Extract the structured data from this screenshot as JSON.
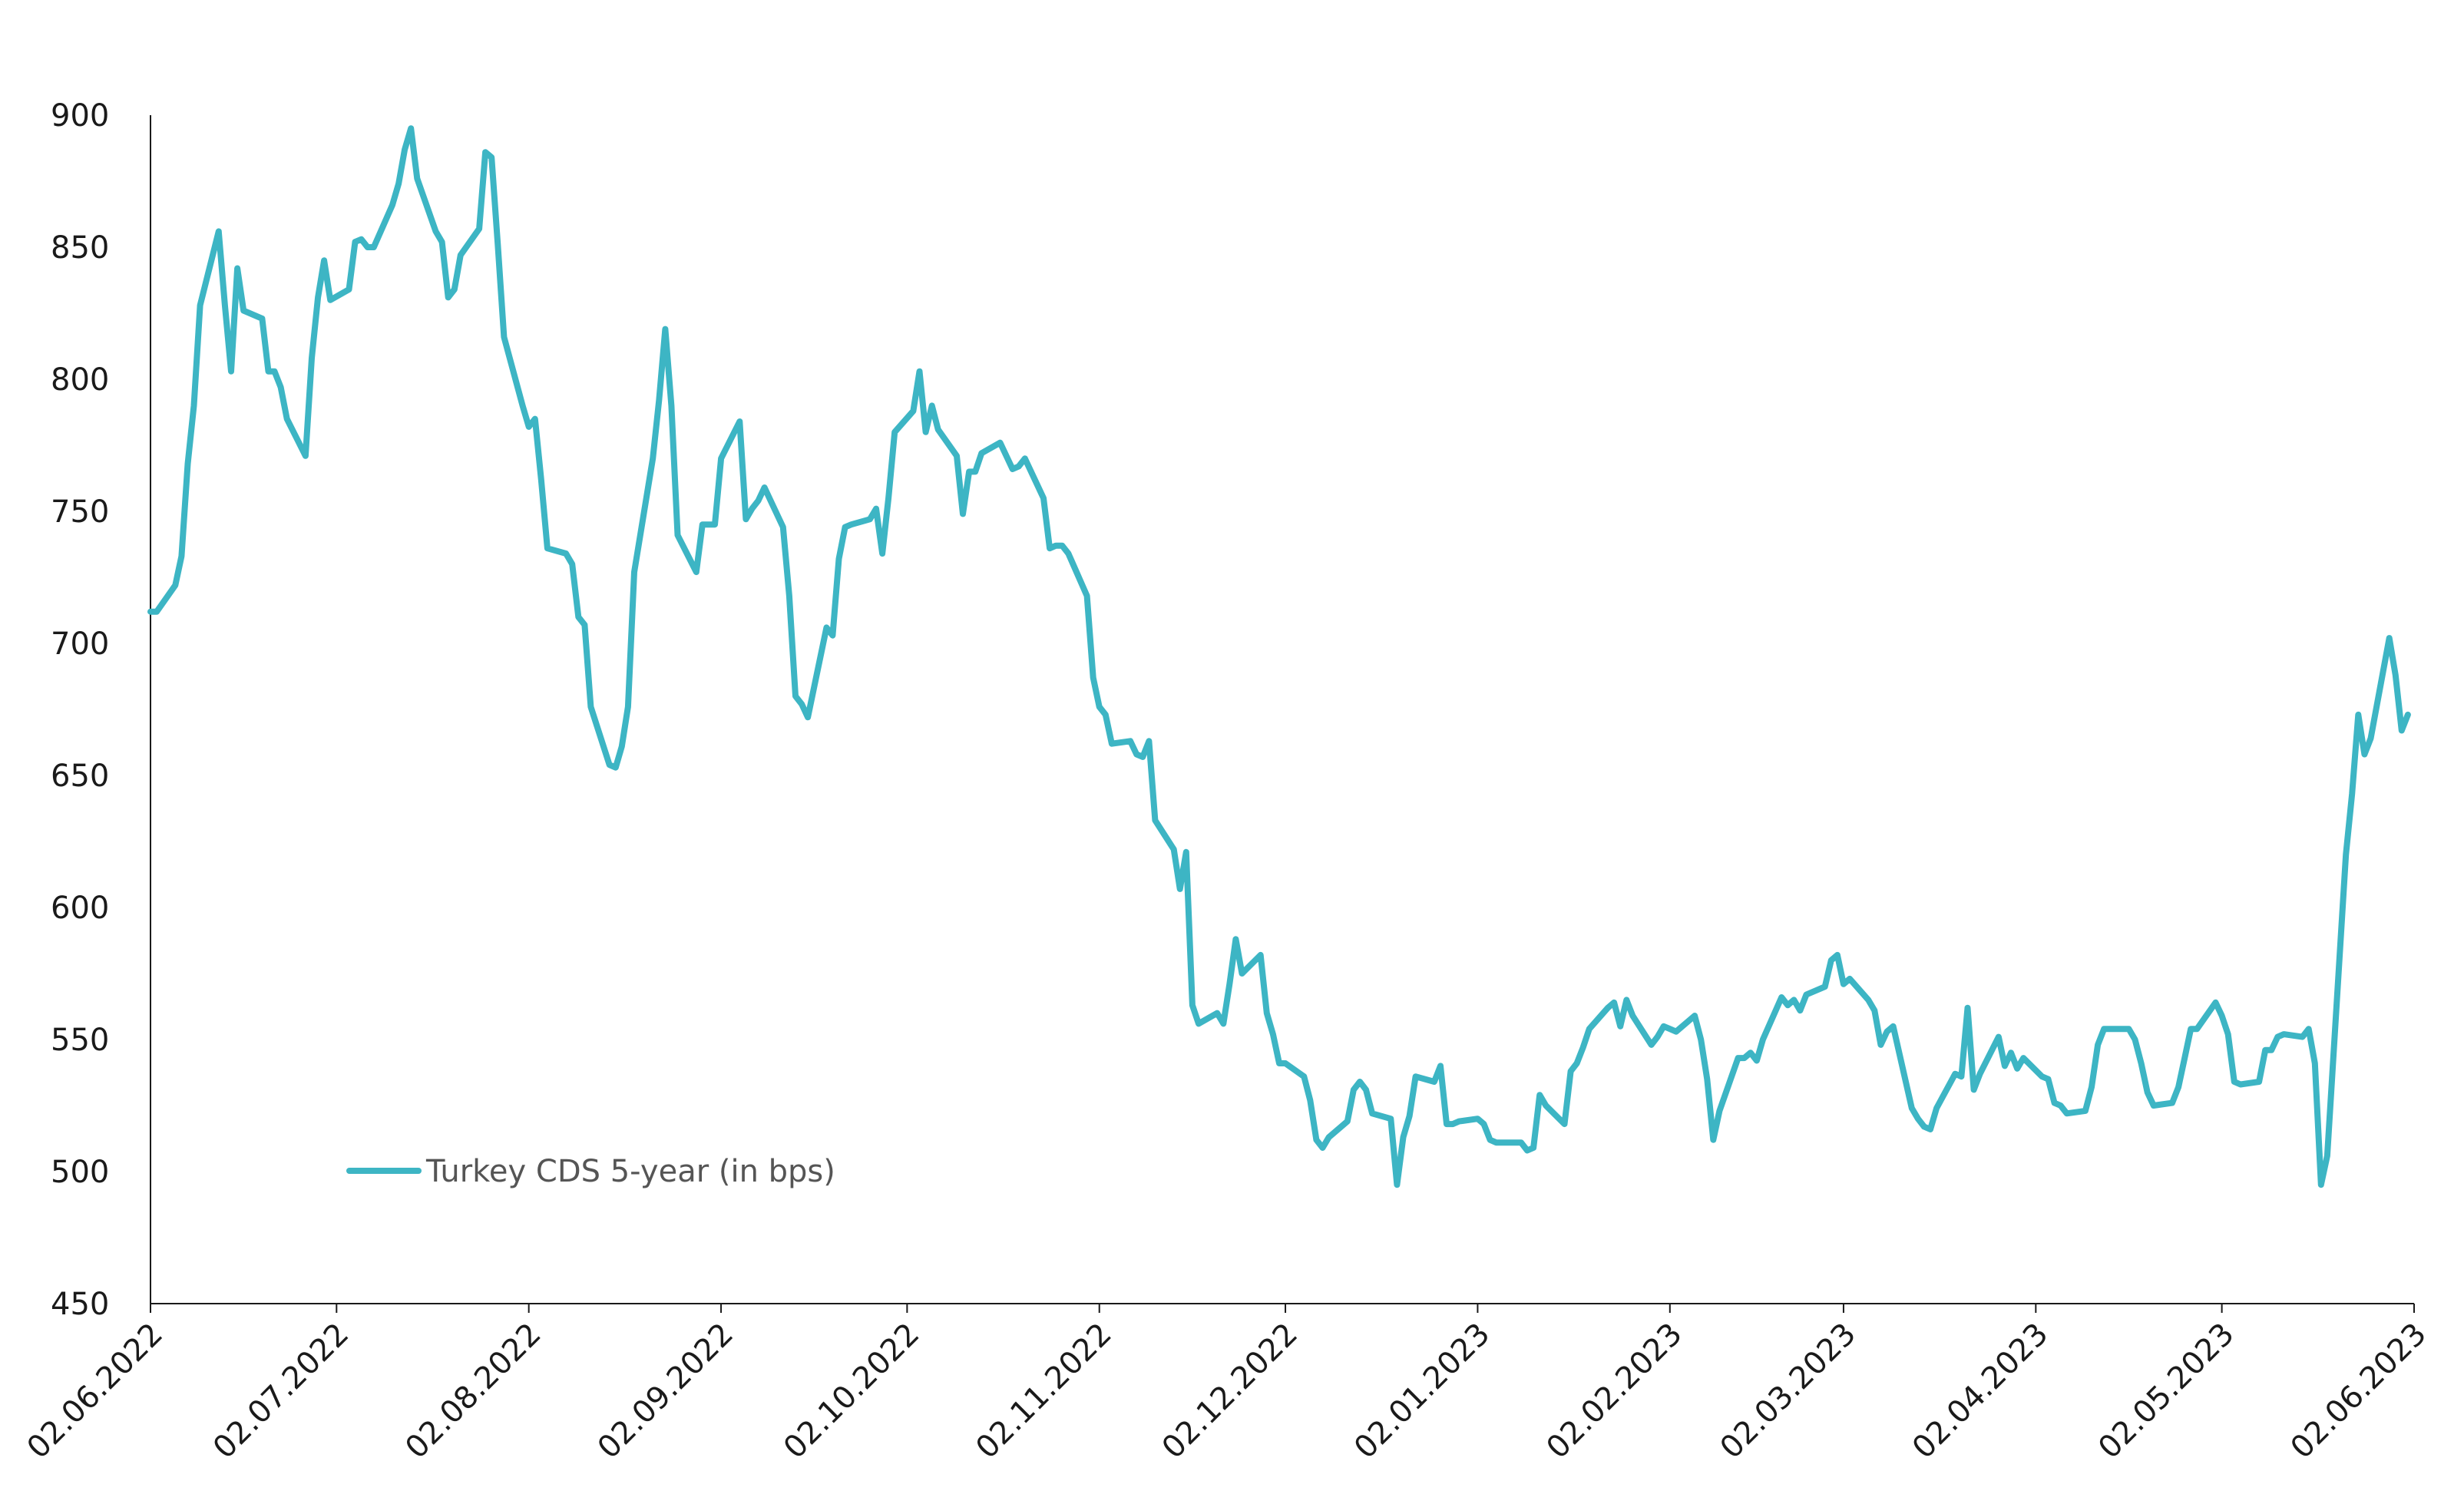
{
  "chart_data": {
    "type": "line",
    "title": "",
    "xlabel": "",
    "ylabel": "",
    "ylim": [
      450,
      900
    ],
    "y_ticks": [
      450,
      500,
      550,
      600,
      650,
      700,
      750,
      800,
      850,
      900
    ],
    "x_ticks": [
      "02.06.2022",
      "02.07.2022",
      "02.08.2022",
      "02.09.2022",
      "02.10.2022",
      "02.11.2022",
      "02.12.2022",
      "02.01.2023",
      "02.02.2023",
      "02.03.2023",
      "02.04.2023",
      "02.05.2023",
      "02.06.2023"
    ],
    "x_range": [
      "2022-06-02",
      "2023-06-02"
    ],
    "grid": false,
    "legend_position": "bottom-left",
    "series": [
      {
        "name": "Turkey CDS 5-year (in bps)",
        "color": "#3db5c4",
        "points": [
          [
            "2022-06-02",
            712
          ],
          [
            "2022-06-03",
            712
          ],
          [
            "2022-06-06",
            722
          ],
          [
            "2022-06-07",
            733
          ],
          [
            "2022-06-08",
            768
          ],
          [
            "2022-06-09",
            790
          ],
          [
            "2022-06-10",
            828
          ],
          [
            "2022-06-13",
            856
          ],
          [
            "2022-06-14",
            828
          ],
          [
            "2022-06-15",
            803
          ],
          [
            "2022-06-16",
            842
          ],
          [
            "2022-06-17",
            826
          ],
          [
            "2022-06-20",
            823
          ],
          [
            "2022-06-21",
            803
          ],
          [
            "2022-06-22",
            803
          ],
          [
            "2022-06-23",
            797
          ],
          [
            "2022-06-24",
            785
          ],
          [
            "2022-06-27",
            771
          ],
          [
            "2022-06-28",
            808
          ],
          [
            "2022-06-29",
            831
          ],
          [
            "2022-06-30",
            845
          ],
          [
            "2022-07-01",
            830
          ],
          [
            "2022-07-04",
            834
          ],
          [
            "2022-07-05",
            852
          ],
          [
            "2022-07-06",
            853
          ],
          [
            "2022-07-07",
            850
          ],
          [
            "2022-07-08",
            850
          ],
          [
            "2022-07-11",
            866
          ],
          [
            "2022-07-12",
            874
          ],
          [
            "2022-07-13",
            887
          ],
          [
            "2022-07-14",
            895
          ],
          [
            "2022-07-15",
            876
          ],
          [
            "2022-07-18",
            856
          ],
          [
            "2022-07-19",
            852
          ],
          [
            "2022-07-20",
            831
          ],
          [
            "2022-07-21",
            834
          ],
          [
            "2022-07-22",
            847
          ],
          [
            "2022-07-25",
            857
          ],
          [
            "2022-07-26",
            886
          ],
          [
            "2022-07-27",
            884
          ],
          [
            "2022-07-28",
            851
          ],
          [
            "2022-07-29",
            816
          ],
          [
            "2022-08-01",
            790
          ],
          [
            "2022-08-02",
            782
          ],
          [
            "2022-08-03",
            785
          ],
          [
            "2022-08-04",
            762
          ],
          [
            "2022-08-05",
            736
          ],
          [
            "2022-08-08",
            734
          ],
          [
            "2022-08-09",
            730
          ],
          [
            "2022-08-10",
            710
          ],
          [
            "2022-08-11",
            707
          ],
          [
            "2022-08-12",
            676
          ],
          [
            "2022-08-15",
            654
          ],
          [
            "2022-08-16",
            653
          ],
          [
            "2022-08-17",
            661
          ],
          [
            "2022-08-18",
            676
          ],
          [
            "2022-08-19",
            727
          ],
          [
            "2022-08-22",
            770
          ],
          [
            "2022-08-23",
            792
          ],
          [
            "2022-08-24",
            819
          ],
          [
            "2022-08-25",
            790
          ],
          [
            "2022-08-26",
            741
          ],
          [
            "2022-08-29",
            727
          ],
          [
            "2022-08-30",
            745
          ],
          [
            "2022-08-31",
            745
          ],
          [
            "2022-09-01",
            745
          ],
          [
            "2022-09-02",
            770
          ],
          [
            "2022-09-05",
            784
          ],
          [
            "2022-09-06",
            747
          ],
          [
            "2022-09-07",
            751
          ],
          [
            "2022-09-08",
            754
          ],
          [
            "2022-09-09",
            759
          ],
          [
            "2022-09-12",
            744
          ],
          [
            "2022-09-13",
            718
          ],
          [
            "2022-09-14",
            680
          ],
          [
            "2022-09-15",
            677
          ],
          [
            "2022-09-16",
            672
          ],
          [
            "2022-09-19",
            706
          ],
          [
            "2022-09-20",
            703
          ],
          [
            "2022-09-21",
            732
          ],
          [
            "2022-09-22",
            744
          ],
          [
            "2022-09-23",
            745
          ],
          [
            "2022-09-26",
            747
          ],
          [
            "2022-09-27",
            751
          ],
          [
            "2022-09-28",
            734
          ],
          [
            "2022-09-29",
            755
          ],
          [
            "2022-09-30",
            780
          ],
          [
            "2022-10-03",
            788
          ],
          [
            "2022-10-04",
            803
          ],
          [
            "2022-10-05",
            780
          ],
          [
            "2022-10-06",
            790
          ],
          [
            "2022-10-07",
            781
          ],
          [
            "2022-10-10",
            771
          ],
          [
            "2022-10-11",
            749
          ],
          [
            "2022-10-12",
            765
          ],
          [
            "2022-10-13",
            765
          ],
          [
            "2022-10-14",
            772
          ],
          [
            "2022-10-17",
            776
          ],
          [
            "2022-10-18",
            771
          ],
          [
            "2022-10-19",
            766
          ],
          [
            "2022-10-20",
            767
          ],
          [
            "2022-10-21",
            770
          ],
          [
            "2022-10-24",
            755
          ],
          [
            "2022-10-25",
            736
          ],
          [
            "2022-10-26",
            737
          ],
          [
            "2022-10-27",
            737
          ],
          [
            "2022-10-28",
            734
          ],
          [
            "2022-10-31",
            718
          ],
          [
            "2022-11-01",
            687
          ],
          [
            "2022-11-02",
            676
          ],
          [
            "2022-11-03",
            673
          ],
          [
            "2022-11-04",
            662
          ],
          [
            "2022-11-07",
            663
          ],
          [
            "2022-11-08",
            658
          ],
          [
            "2022-11-09",
            657
          ],
          [
            "2022-11-10",
            663
          ],
          [
            "2022-11-11",
            633
          ],
          [
            "2022-11-14",
            622
          ],
          [
            "2022-11-15",
            607
          ],
          [
            "2022-11-16",
            621
          ],
          [
            "2022-11-17",
            563
          ],
          [
            "2022-11-18",
            556
          ],
          [
            "2022-11-21",
            560
          ],
          [
            "2022-11-22",
            556
          ],
          [
            "2022-11-23",
            571
          ],
          [
            "2022-11-24",
            588
          ],
          [
            "2022-11-25",
            575
          ],
          [
            "2022-11-28",
            582
          ],
          [
            "2022-11-29",
            560
          ],
          [
            "2022-11-30",
            552
          ],
          [
            "2022-12-01",
            541
          ],
          [
            "2022-12-02",
            541
          ],
          [
            "2022-12-05",
            536
          ],
          [
            "2022-12-06",
            527
          ],
          [
            "2022-12-07",
            512
          ],
          [
            "2022-12-08",
            509
          ],
          [
            "2022-12-09",
            513
          ],
          [
            "2022-12-12",
            519
          ],
          [
            "2022-12-13",
            531
          ],
          [
            "2022-12-14",
            534
          ],
          [
            "2022-12-15",
            531
          ],
          [
            "2022-12-16",
            522
          ],
          [
            "2022-12-19",
            520
          ],
          [
            "2022-12-20",
            495
          ],
          [
            "2022-12-21",
            513
          ],
          [
            "2022-12-22",
            521
          ],
          [
            "2022-12-23",
            536
          ],
          [
            "2022-12-26",
            534
          ],
          [
            "2022-12-27",
            540
          ],
          [
            "2022-12-28",
            518
          ],
          [
            "2022-12-29",
            518
          ],
          [
            "2022-12-30",
            519
          ],
          [
            "2023-01-02",
            520
          ],
          [
            "2023-01-03",
            518
          ],
          [
            "2023-01-04",
            512
          ],
          [
            "2023-01-05",
            511
          ],
          [
            "2023-01-06",
            511
          ],
          [
            "2023-01-09",
            511
          ],
          [
            "2023-01-10",
            508
          ],
          [
            "2023-01-11",
            509
          ],
          [
            "2023-01-12",
            529
          ],
          [
            "2023-01-13",
            525
          ],
          [
            "2023-01-16",
            518
          ],
          [
            "2023-01-17",
            538
          ],
          [
            "2023-01-18",
            541
          ],
          [
            "2023-01-19",
            547
          ],
          [
            "2023-01-20",
            554
          ],
          [
            "2023-01-23",
            562
          ],
          [
            "2023-01-24",
            564
          ],
          [
            "2023-01-25",
            555
          ],
          [
            "2023-01-26",
            565
          ],
          [
            "2023-01-27",
            559
          ],
          [
            "2023-01-30",
            548
          ],
          [
            "2023-01-31",
            551
          ],
          [
            "2023-02-01",
            555
          ],
          [
            "2023-02-02",
            554
          ],
          [
            "2023-02-03",
            553
          ],
          [
            "2023-02-06",
            559
          ],
          [
            "2023-02-07",
            550
          ],
          [
            "2023-02-08",
            535
          ],
          [
            "2023-02-09",
            512
          ],
          [
            "2023-02-10",
            523
          ],
          [
            "2023-02-13",
            543
          ],
          [
            "2023-02-14",
            543
          ],
          [
            "2023-02-15",
            545
          ],
          [
            "2023-02-16",
            542
          ],
          [
            "2023-02-17",
            550
          ],
          [
            "2023-02-20",
            566
          ],
          [
            "2023-02-21",
            563
          ],
          [
            "2023-02-22",
            565
          ],
          [
            "2023-02-23",
            561
          ],
          [
            "2023-02-24",
            567
          ],
          [
            "2023-02-27",
            570
          ],
          [
            "2023-02-28",
            580
          ],
          [
            "2023-03-01",
            582
          ],
          [
            "2023-03-02",
            571
          ],
          [
            "2023-03-03",
            573
          ],
          [
            "2023-03-06",
            565
          ],
          [
            "2023-03-07",
            561
          ],
          [
            "2023-03-08",
            548
          ],
          [
            "2023-03-09",
            553
          ],
          [
            "2023-03-10",
            555
          ],
          [
            "2023-03-13",
            524
          ],
          [
            "2023-03-14",
            520
          ],
          [
            "2023-03-15",
            517
          ],
          [
            "2023-03-16",
            516
          ],
          [
            "2023-03-17",
            524
          ],
          [
            "2023-03-20",
            537
          ],
          [
            "2023-03-21",
            536
          ],
          [
            "2023-03-22",
            562
          ],
          [
            "2023-03-23",
            531
          ],
          [
            "2023-03-24",
            537
          ],
          [
            "2023-03-27",
            551
          ],
          [
            "2023-03-28",
            540
          ],
          [
            "2023-03-29",
            545
          ],
          [
            "2023-03-30",
            539
          ],
          [
            "2023-03-31",
            543
          ],
          [
            "2023-04-03",
            536
          ],
          [
            "2023-04-04",
            535
          ],
          [
            "2023-04-05",
            526
          ],
          [
            "2023-04-06",
            525
          ],
          [
            "2023-04-07",
            522
          ],
          [
            "2023-04-10",
            523
          ],
          [
            "2023-04-11",
            532
          ],
          [
            "2023-04-12",
            548
          ],
          [
            "2023-04-13",
            554
          ],
          [
            "2023-04-14",
            554
          ],
          [
            "2023-04-17",
            554
          ],
          [
            "2023-04-18",
            550
          ],
          [
            "2023-04-19",
            541
          ],
          [
            "2023-04-20",
            530
          ],
          [
            "2023-04-21",
            525
          ],
          [
            "2023-04-24",
            526
          ],
          [
            "2023-04-25",
            532
          ],
          [
            "2023-04-26",
            543
          ],
          [
            "2023-04-27",
            554
          ],
          [
            "2023-04-28",
            554
          ],
          [
            "2023-05-01",
            564
          ],
          [
            "2023-05-02",
            559
          ],
          [
            "2023-05-03",
            552
          ],
          [
            "2023-05-04",
            534
          ],
          [
            "2023-05-05",
            533
          ],
          [
            "2023-05-08",
            534
          ],
          [
            "2023-05-09",
            546
          ],
          [
            "2023-05-10",
            546
          ],
          [
            "2023-05-11",
            551
          ],
          [
            "2023-05-12",
            552
          ],
          [
            "2023-05-15",
            551
          ],
          [
            "2023-05-16",
            554
          ],
          [
            "2023-05-17",
            541
          ],
          [
            "2023-05-18",
            495
          ],
          [
            "2023-05-19",
            506
          ],
          [
            "2023-05-22",
            620
          ],
          [
            "2023-05-23",
            643
          ],
          [
            "2023-05-24",
            673
          ],
          [
            "2023-05-25",
            658
          ],
          [
            "2023-05-26",
            664
          ],
          [
            "2023-05-29",
            702
          ],
          [
            "2023-05-30",
            688
          ],
          [
            "2023-05-31",
            667
          ],
          [
            "2023-06-01",
            673
          ]
        ]
      }
    ]
  }
}
